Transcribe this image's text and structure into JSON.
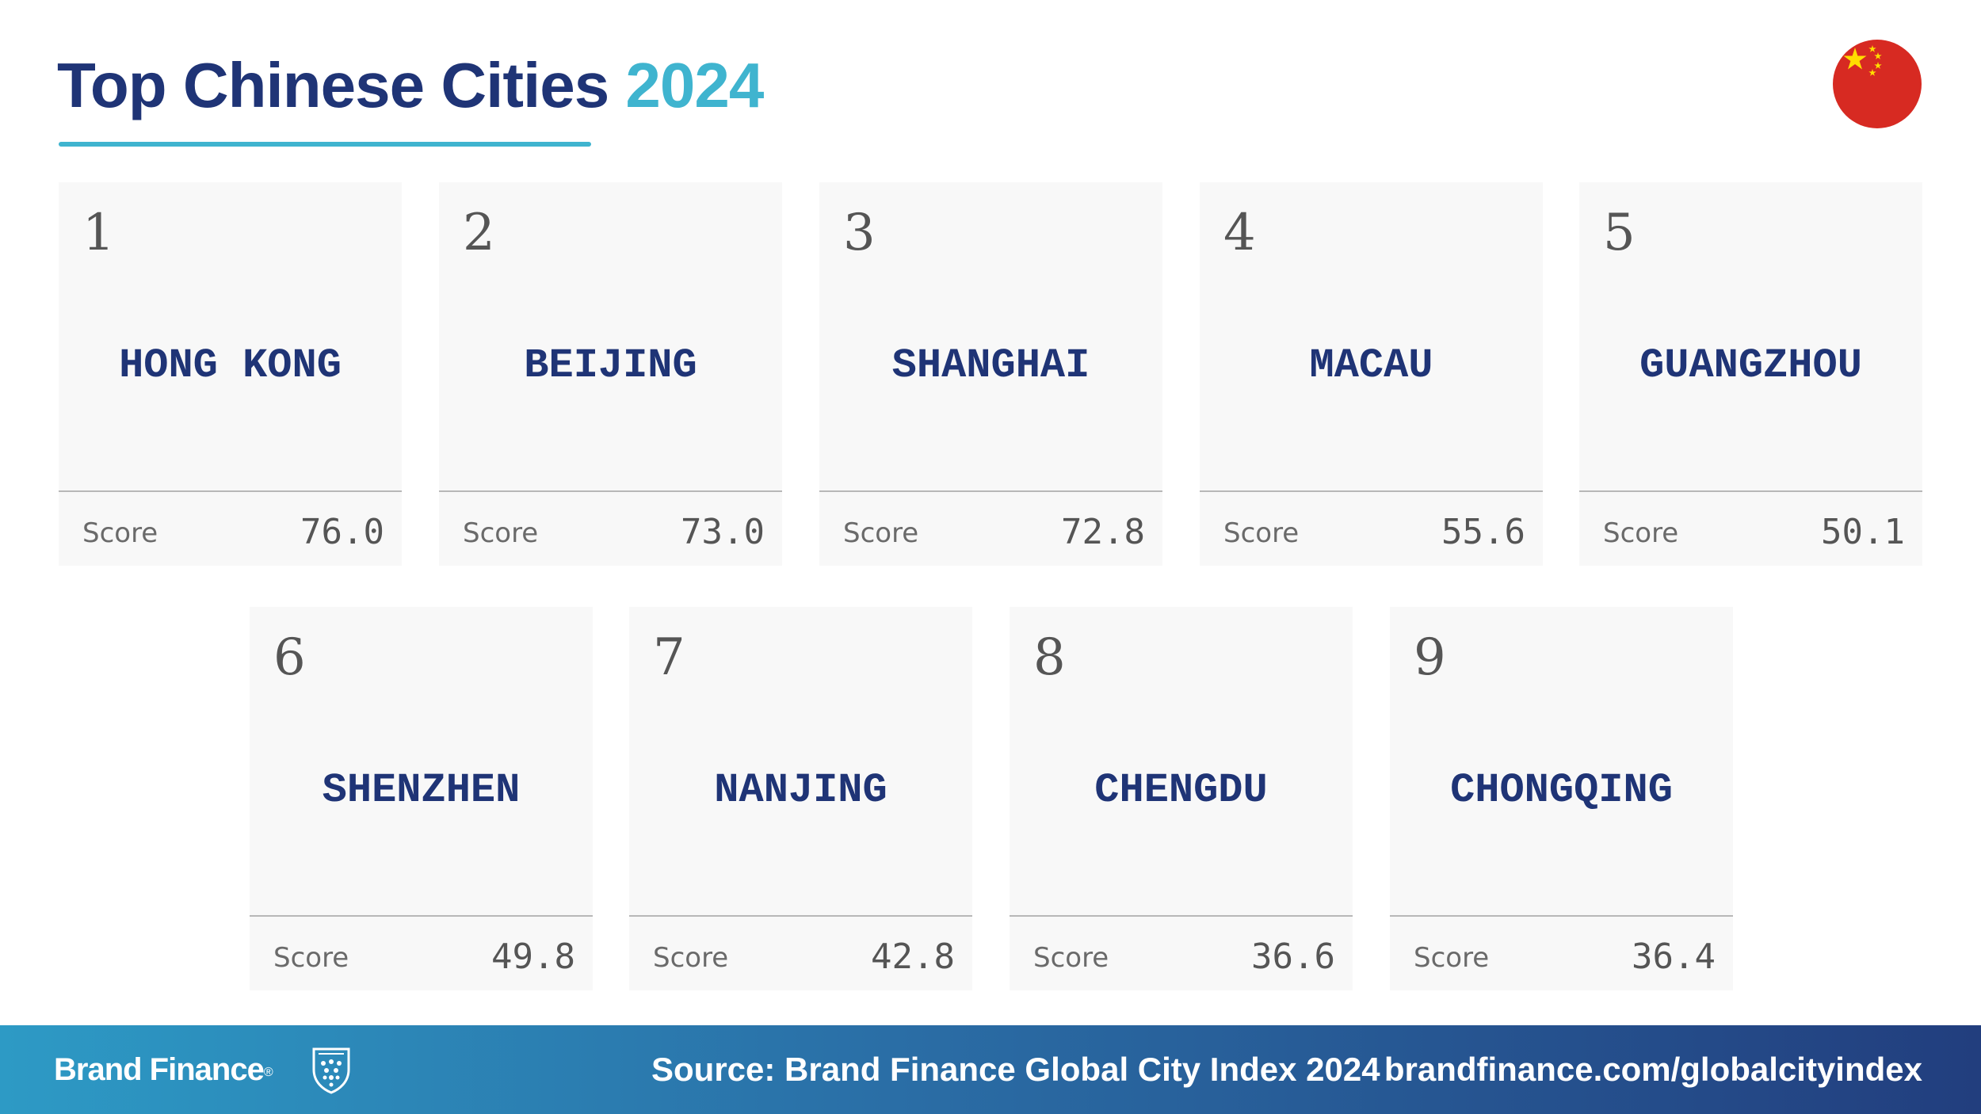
{
  "header": {
    "title": "Top Chinese Cities",
    "year": "2024",
    "flag_icon": "china-flag-icon",
    "colors": {
      "title": "#1f3476",
      "accent": "#3fb4cf",
      "flag_red": "#de2910",
      "flag_star": "#ffde00"
    }
  },
  "cards": [
    {
      "rank": "1",
      "city": "HONG KONG",
      "score_label": "Score",
      "score": "76.0"
    },
    {
      "rank": "2",
      "city": "BEIJING",
      "score_label": "Score",
      "score": "73.0"
    },
    {
      "rank": "3",
      "city": "SHANGHAI",
      "score_label": "Score",
      "score": "72.8"
    },
    {
      "rank": "4",
      "city": "MACAU",
      "score_label": "Score",
      "score": "55.6"
    },
    {
      "rank": "5",
      "city": "GUANGZHOU",
      "score_label": "Score",
      "score": "50.1"
    },
    {
      "rank": "6",
      "city": "SHENZHEN",
      "score_label": "Score",
      "score": "49.8"
    },
    {
      "rank": "7",
      "city": "NANJING",
      "score_label": "Score",
      "score": "42.8"
    },
    {
      "rank": "8",
      "city": "CHENGDU",
      "score_label": "Score",
      "score": "36.6"
    },
    {
      "rank": "9",
      "city": "CHONGQING",
      "score_label": "Score",
      "score": "36.4"
    }
  ],
  "footer": {
    "brand": "Brand Finance",
    "brand_mark": "®",
    "shield_icon": "brand-finance-shield-icon",
    "source": "Source: Brand Finance Global City Index 2024",
    "url": "brandfinance.com/globalcityindex"
  }
}
